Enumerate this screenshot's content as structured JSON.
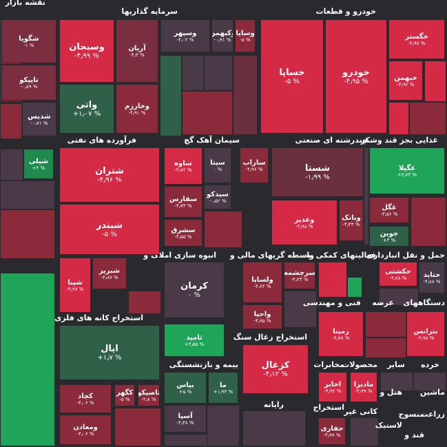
{
  "title": "نقشه بازار",
  "sector_titles": [
    "سرمایه گذاریها",
    "خودرو و قطعات",
    "فرآورده های نفتی",
    "سیمان آهک گچ",
    "چندرشته ای صنعتی",
    "غذایی بجز قند وشکر",
    "انبوه سازی املاک و",
    "واسطه گریهای مالی و",
    "فعالیتهای کمکی به",
    "حمل و نقل انبارداری",
    "استخراج کانه های فلزی",
    "فنی و مهندسی",
    "عرضه",
    "دستگاههای",
    "استخراج زغال سنگ",
    "بیمه و بازنشستگی",
    "مخابرات",
    "محصولات",
    "سایر",
    "خرده",
    "رایانه",
    "استخراج",
    "کانی غیر",
    "هتل و",
    "ماشین",
    "زراعت",
    "منسوج",
    "لاستیک",
    "قند و"
  ],
  "tiles": [
    {
      "name": "شگویا",
      "change": "-۱ %",
      "color": "#7a2e40"
    },
    {
      "name": "تاپیکو",
      "change": "-۰٫۸۹ %",
      "color": "#7a2e40"
    },
    {
      "name": "شدیس",
      "change": "-۰٫۷۱ %",
      "color": "#4a3a48"
    },
    {
      "name": "شپلی",
      "change": "+۴ %",
      "color": "#1f8a4e"
    },
    {
      "name": "وسبحان",
      "change": "-۴٫۹۹ %",
      "color": "#d42a45"
    },
    {
      "name": "آریان",
      "change": "-۴٫۳ %",
      "color": "#7a2e40"
    },
    {
      "name": "واتی",
      "change": "+۱٫۰۷ %",
      "color": "#2f6048"
    },
    {
      "name": "وخارزم",
      "change": "-۴٫۹۱ %",
      "color": "#8a2a3a"
    },
    {
      "name": "وسپهر",
      "change": "-۴٫۰۲ %",
      "color": "#4a3a48"
    },
    {
      "name": "وکبهمن",
      "change": "-۰٫۹۱ %",
      "color": "#4a3a48"
    },
    {
      "name": "وساپا",
      "change": "-۵ %",
      "color": "#8a2a3a"
    },
    {
      "name": "خساپا",
      "change": "-۵ %",
      "color": "#d42a45"
    },
    {
      "name": "خودرو",
      "change": "-۴٫۹۵ %",
      "color": "#d42a45"
    },
    {
      "name": "خگستر",
      "change": "-۴٫۹۷ %",
      "color": "#d42a45"
    },
    {
      "name": "خبهمن",
      "change": "-۴٫۹۲ %",
      "color": "#d42a45"
    },
    {
      "name": "شتران",
      "change": "-۴٫۹۶ %",
      "color": "#d42a45"
    },
    {
      "name": "شبندر",
      "change": "-۵ %",
      "color": "#d42a45"
    },
    {
      "name": "شپنا",
      "change": "-۴٫۹۷ %",
      "color": "#d42a45"
    },
    {
      "name": "شبریز",
      "change": "-۴٫۸۷ %",
      "color": "#8a2a3a"
    },
    {
      "name": "ساوه",
      "change": "-۴٫۸۲ %",
      "color": "#d42a45"
    },
    {
      "name": "سیتا",
      "change": "۰ %",
      "color": "#4a3a48"
    },
    {
      "name": "ساراب",
      "change": "-۴٫۹۶ %",
      "color": "#8a2a3a"
    },
    {
      "name": "سفارس",
      "change": "-۴٫۷۳ %",
      "color": "#8a2a3a"
    },
    {
      "name": "سیدکو",
      "change": "-۰٫۵۲ %",
      "color": "#4a3a48"
    },
    {
      "name": "سشرق",
      "change": "-۴٫۵۵ %",
      "color": "#8a2a3a"
    },
    {
      "name": "شستا",
      "change": "-۱٫۹۹ %",
      "color": "#6a3040"
    },
    {
      "name": "وغدیر",
      "change": "-۴٫۹۸ %",
      "color": "#d42a45"
    },
    {
      "name": "وبانک",
      "change": "-۴٫۴۴ %",
      "color": "#8a2a3a"
    },
    {
      "name": "غگیلا",
      "change": "+۴٫۶۳ %",
      "color": "#1ea55a"
    },
    {
      "name": "غگل",
      "change": "-۳٫۵۶ %",
      "color": "#8a2a3a"
    },
    {
      "name": "جوین",
      "change": "+۳ %",
      "color": "#2f6048"
    },
    {
      "name": "کرمان",
      "change": "۰ %",
      "color": "#4a3a48"
    },
    {
      "name": "ثامید",
      "change": "+۴٫۵۵ %",
      "color": "#1ea55a"
    },
    {
      "name": "ولساپا",
      "change": "-۴٫۶۲ %",
      "color": "#8a2a3a"
    },
    {
      "name": "سرچشمه",
      "change": "-۴٫۲۳ %",
      "color": "#8a2a3a"
    },
    {
      "name": "واحیا",
      "change": "-۴٫۹۵ %",
      "color": "#8a2a3a"
    },
    {
      "name": "حکشتی",
      "change": "-۴٫۸۸ %",
      "color": "#d42a45"
    },
    {
      "name": "حتاید",
      "change": "-۴٫۸۸ %",
      "color": "#4a3a48"
    },
    {
      "name": "رمپنا",
      "change": "-۴٫۷۸ %",
      "color": "#d42a45"
    },
    {
      "name": "بترانس",
      "change": "-۴٫۹۸ %",
      "color": "#d42a45"
    },
    {
      "name": "اپال",
      "change": "+۱٫۷ %",
      "color": "#2f6048"
    },
    {
      "name": "کچاد",
      "change": "-۴٫۰۶ %",
      "color": "#8a2a3a"
    },
    {
      "name": "کگهر",
      "change": "-۵ %",
      "color": "#8a2a3a"
    },
    {
      "name": "تاصیکو",
      "change": "-۲٫۸ %",
      "color": "#8a2a3a"
    },
    {
      "name": "ومعادن",
      "change": "-۴٫۰۶ %",
      "color": "#8a2a3a"
    },
    {
      "name": "بپاس",
      "change": "+۵ %",
      "color": "#2f6048"
    },
    {
      "name": "ما",
      "change": "+۱٫۹۳ %",
      "color": "#2f6048"
    },
    {
      "name": "آسیا",
      "change": "-۴٫۴۸ %",
      "color": "#4a3a48"
    },
    {
      "name": "کزغال",
      "change": "-۴٫۱۲ %",
      "color": "#d42a45"
    },
    {
      "name": "اخابر",
      "change": "-۴٫۹۲ %",
      "color": "#d42a45"
    },
    {
      "name": "مادیرا",
      "change": "-۴٫۹۹ %",
      "color": "#d42a45"
    },
    {
      "name": "حفاری",
      "change": "-۴٫۹۹ %",
      "color": "#8a2a3a"
    }
  ]
}
